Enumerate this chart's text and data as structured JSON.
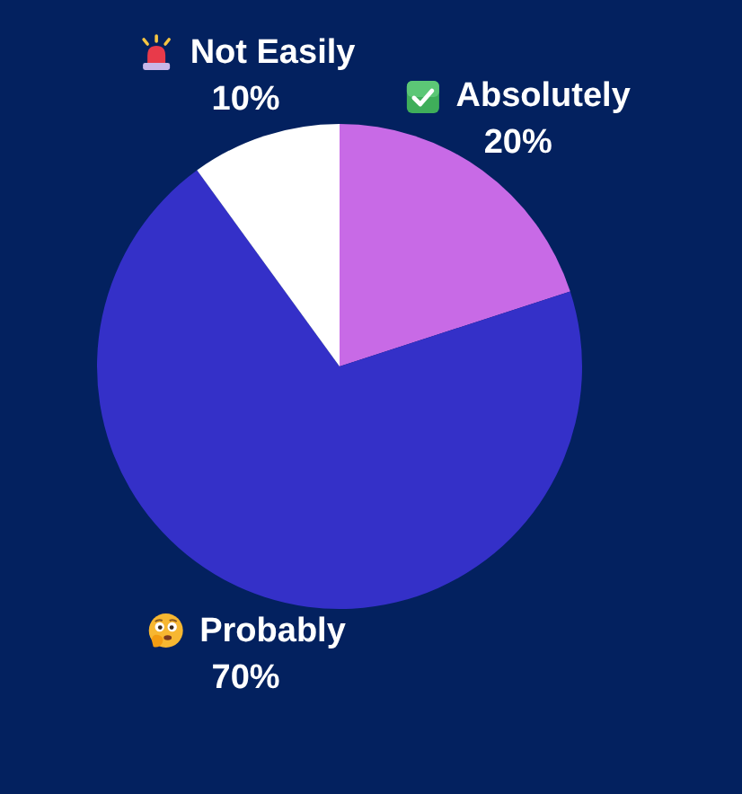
{
  "chart_data": {
    "type": "pie",
    "categories": [
      "Absolutely",
      "Probably",
      "Not Easily"
    ],
    "values": [
      20,
      70,
      10
    ],
    "colors": [
      "#c86ae6",
      "#3430c8",
      "#ffffff"
    ],
    "value_labels": [
      "20%",
      "70%",
      "10%"
    ]
  }
}
